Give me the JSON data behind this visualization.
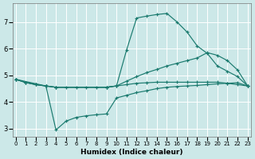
{
  "xlabel": "Humidex (Indice chaleur)",
  "bg_color": "#cce8e8",
  "line_color": "#1a7a6e",
  "grid_color": "#ffffff",
  "xlim": [
    -0.3,
    23.3
  ],
  "ylim": [
    2.7,
    7.7
  ],
  "xticks": [
    0,
    1,
    2,
    3,
    4,
    5,
    6,
    7,
    8,
    9,
    10,
    11,
    12,
    13,
    14,
    15,
    16,
    17,
    18,
    19,
    20,
    21,
    22,
    23
  ],
  "yticks": [
    3,
    4,
    5,
    6,
    7
  ],
  "lines": [
    {
      "x": [
        0,
        1,
        2,
        3,
        4,
        9,
        10,
        11,
        12,
        13,
        14,
        15,
        16,
        17,
        18,
        19,
        20,
        21,
        22,
        23
      ],
      "y": [
        4.85,
        4.73,
        4.65,
        4.6,
        4.55,
        4.55,
        4.6,
        5.95,
        7.15,
        7.22,
        7.28,
        7.32,
        7.0,
        6.62,
        6.1,
        5.82,
        5.35,
        5.15,
        4.95,
        4.6
      ]
    },
    {
      "x": [
        0,
        1,
        2,
        3,
        4,
        9,
        10,
        11,
        12,
        13,
        14,
        15,
        16,
        17,
        18,
        19,
        20,
        21,
        22,
        23
      ],
      "y": [
        4.85,
        4.73,
        4.65,
        4.6,
        4.55,
        4.55,
        4.6,
        4.78,
        4.95,
        5.1,
        5.22,
        5.35,
        5.45,
        5.55,
        5.65,
        5.85,
        5.75,
        5.55,
        5.2,
        4.6
      ]
    },
    {
      "x": [
        0,
        1,
        2,
        3,
        4,
        5,
        6,
        7,
        8,
        9,
        10,
        11,
        12,
        13,
        14,
        15,
        16,
        17,
        18,
        19,
        20,
        21,
        22,
        23
      ],
      "y": [
        4.85,
        4.73,
        4.65,
        4.6,
        4.55,
        4.55,
        4.55,
        4.55,
        4.55,
        4.55,
        4.6,
        4.65,
        4.7,
        4.72,
        4.74,
        4.74,
        4.74,
        4.74,
        4.74,
        4.74,
        4.74,
        4.7,
        4.65,
        4.6
      ]
    },
    {
      "x": [
        0,
        3,
        4,
        5,
        6,
        7,
        8,
        9,
        10,
        11,
        12,
        13,
        14,
        15,
        16,
        17,
        18,
        19,
        20,
        21,
        22,
        23
      ],
      "y": [
        4.85,
        4.6,
        2.95,
        3.28,
        3.42,
        3.48,
        3.52,
        3.55,
        4.15,
        4.25,
        4.35,
        4.42,
        4.5,
        4.55,
        4.58,
        4.6,
        4.62,
        4.65,
        4.68,
        4.7,
        4.72,
        4.6
      ]
    }
  ]
}
